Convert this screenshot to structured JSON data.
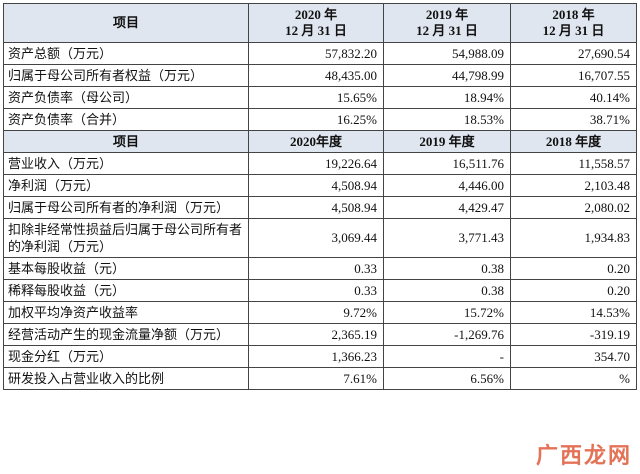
{
  "table": {
    "header1": [
      "项目",
      "2020 年\n12 月 31 日",
      "2019 年\n12 月 31 日",
      "2018 年\n12 月 31 日"
    ],
    "header2": [
      "项目",
      "2020年度",
      "2019 年度",
      "2018 年度"
    ],
    "balance_rows": [
      [
        "资产总额（万元）",
        "57,832.20",
        "54,988.09",
        "27,690.54"
      ],
      [
        "归属于母公司所有者权益（万元）",
        "48,435.00",
        "44,798.99",
        "16,707.55"
      ],
      [
        "资产负债率（母公司）",
        "15.65%",
        "18.94%",
        "40.14%"
      ],
      [
        "资产负债率（合并）",
        "16.25%",
        "18.53%",
        "38.71%"
      ]
    ],
    "income_rows": [
      [
        "营业收入（万元）",
        "19,226.64",
        "16,511.76",
        "11,558.57"
      ],
      [
        "净利润（万元）",
        "4,508.94",
        "4,446.00",
        "2,103.48"
      ],
      [
        "归属于母公司所有者的净利润（万元）",
        "4,508.94",
        "4,429.47",
        "2,080.02"
      ],
      [
        "扣除非经常性损益后归属于母公司所有者的净利润（万元）",
        "3,069.44",
        "3,771.43",
        "1,934.83"
      ],
      [
        "基本每股收益（元）",
        "0.33",
        "0.38",
        "0.20"
      ],
      [
        "稀释每股收益（元）",
        "0.33",
        "0.38",
        "0.20"
      ],
      [
        "加权平均净资产收益率",
        "9.72%",
        "15.72%",
        "14.53%"
      ],
      [
        "经营活动产生的现金流量净额（万元）",
        "2,365.19",
        "-1,269.76",
        "-319.19"
      ],
      [
        "现金分红（万元）",
        "1,366.23",
        "-",
        "354.70"
      ],
      [
        "研发投入占营业收入的比例",
        "7.61%",
        "6.56%",
        "%"
      ]
    ]
  },
  "watermark": {
    "text": "广西龙网",
    "color": "#e05a3a"
  }
}
